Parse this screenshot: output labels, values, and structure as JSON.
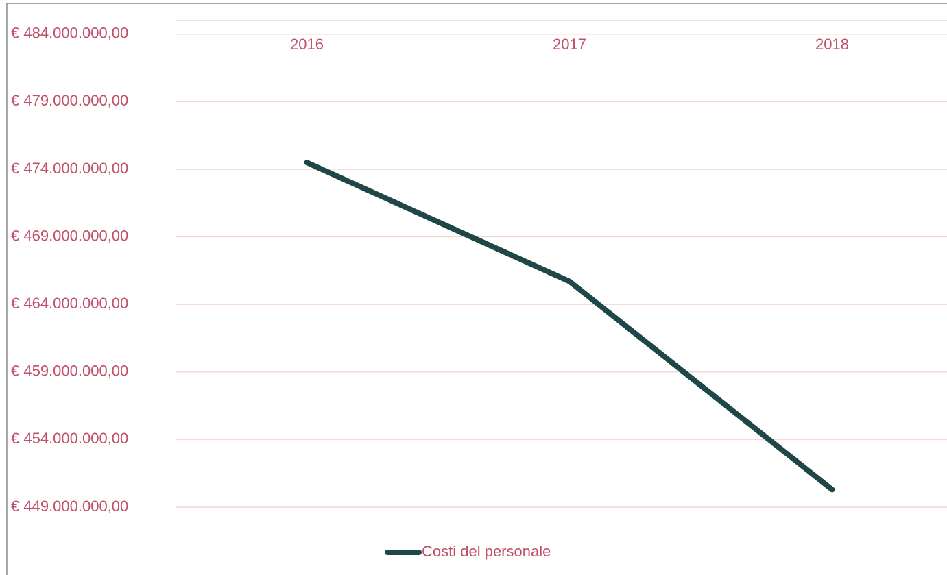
{
  "chart_data": {
    "type": "line",
    "categories": [
      "2016",
      "2017",
      "2018"
    ],
    "series": [
      {
        "name": "Costi del personale",
        "color": "#1f4747",
        "values": [
          474500000,
          465700000,
          450300000
        ]
      }
    ],
    "ylim": [
      449000000,
      485000000
    ],
    "yticks": [
      {
        "value": 449000000,
        "label": "€ 449.000.000,00"
      },
      {
        "value": 454000000,
        "label": "€ 454.000.000,00"
      },
      {
        "value": 459000000,
        "label": "€ 459.000.000,00"
      },
      {
        "value": 464000000,
        "label": "€ 464.000.000,00"
      },
      {
        "value": 469000000,
        "label": "€ 469.000.000,00"
      },
      {
        "value": 474000000,
        "label": "€ 474.000.000,00"
      },
      {
        "value": 479000000,
        "label": "€ 479.000.000,00"
      },
      {
        "value": 484000000,
        "label": "€ 484.000.000,00"
      }
    ],
    "grid": true,
    "x_axis_position": "top",
    "legend": "bottom"
  }
}
